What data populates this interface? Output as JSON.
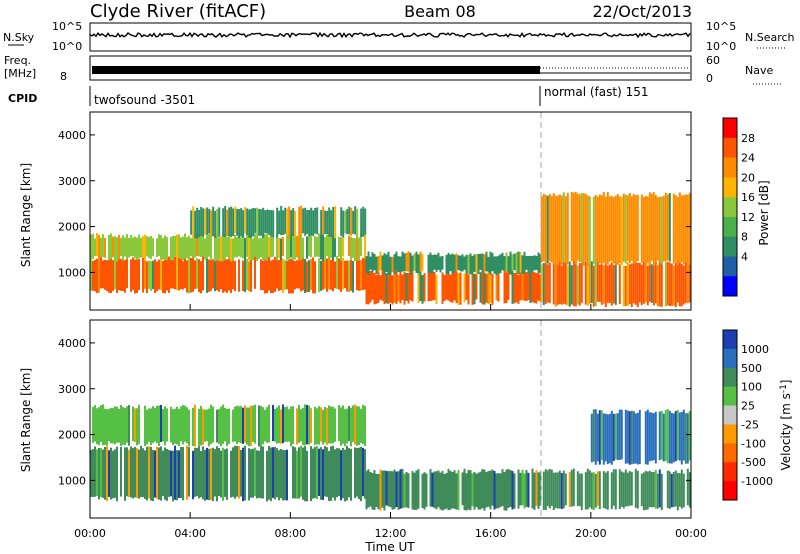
{
  "header": {
    "station": "Clyde River (fitACF)",
    "beam": "Beam 08",
    "date": "22/Oct/2013"
  },
  "noise_panel": {
    "left_label": "N.Sky",
    "right_label": "N.Search",
    "left_ticks": [
      "10^5",
      "10^0"
    ],
    "right_ticks": [
      "10^5",
      "10^0"
    ]
  },
  "freq_panel": {
    "left_label_1": "Freq.",
    "left_label_2": "[MHz]",
    "left_ticks": [
      "8"
    ],
    "right_label": "Nave",
    "right_ticks": [
      "60",
      "0"
    ]
  },
  "cpid_panel": {
    "label": "CPID",
    "segments": [
      "twofsound -3501",
      "normal (fast) 151"
    ]
  },
  "power_panel": {
    "ylabel": "Slant Range [km]",
    "yticks": [
      "4000",
      "3000",
      "2000",
      "1000"
    ],
    "colorbar_label": "Power [dB]",
    "colorbar_ticks": [
      "28",
      "24",
      "20",
      "16",
      "12",
      "8",
      "4"
    ],
    "colorbar_colors": [
      "#ff0000",
      "#ff5500",
      "#ff8c00",
      "#ffb400",
      "#8cc83c",
      "#4ab04a",
      "#2f8f63",
      "#1e5fa8",
      "#0000ff"
    ]
  },
  "velocity_panel": {
    "ylabel": "Slant Range [km]",
    "yticks": [
      "4000",
      "3000",
      "2000",
      "1000"
    ],
    "colorbar_label": "Velocity [m s^-1]",
    "colorbar_ticks": [
      "1000",
      "500",
      "100",
      "25",
      "-25",
      "-100",
      "-500",
      "-1000"
    ],
    "colorbar_colors": [
      "#1d3fb0",
      "#2a6fbf",
      "#3f8c5a",
      "#55c043",
      "#c8c8c8",
      "#ff9a00",
      "#ff6a00",
      "#ff2a00",
      "#ff0000"
    ]
  },
  "xaxis": {
    "label": "Time UT",
    "ticks": [
      "00:00",
      "04:00",
      "08:00",
      "12:00",
      "16:00",
      "20:00",
      "00:00"
    ]
  },
  "chart_data": [
    {
      "type": "heatmap",
      "title": "Power",
      "xlabel": "Time UT",
      "ylabel": "Slant Range [km]",
      "x_range_hours": [
        0,
        24
      ],
      "ylim": [
        180,
        4500
      ],
      "colorbar": "Power [dB]",
      "color_range": [
        0,
        32
      ],
      "bands": [
        {
          "start_h": 0.0,
          "end_h": 11.0,
          "range_km": [
            600,
            1300
          ],
          "level_db": 28
        },
        {
          "start_h": 0.0,
          "end_h": 11.0,
          "range_km": [
            1300,
            1800
          ],
          "level_db": 16
        },
        {
          "start_h": 4.0,
          "end_h": 11.0,
          "range_km": [
            1800,
            2400
          ],
          "level_db": 8
        },
        {
          "start_h": 11.0,
          "end_h": 18.0,
          "range_km": [
            350,
            1000
          ],
          "level_db": 28
        },
        {
          "start_h": 11.0,
          "end_h": 18.0,
          "range_km": [
            1000,
            1400
          ],
          "level_db": 10
        },
        {
          "start_h": 18.0,
          "end_h": 24.0,
          "range_km": [
            300,
            1200
          ],
          "level_db": 28
        },
        {
          "start_h": 18.0,
          "end_h": 24.0,
          "range_km": [
            1200,
            2700
          ],
          "level_db": 26
        }
      ],
      "mode_change_h": 18.0
    },
    {
      "type": "heatmap",
      "title": "Velocity",
      "xlabel": "Time UT",
      "ylabel": "Slant Range [km]",
      "x_range_hours": [
        0,
        24
      ],
      "ylim": [
        180,
        4500
      ],
      "colorbar": "Velocity [m s^-1]",
      "color_range": [
        -1000,
        1000
      ],
      "bands": [
        {
          "start_h": 0.0,
          "end_h": 11.0,
          "range_km": [
            600,
            1700
          ],
          "level_ms": 100
        },
        {
          "start_h": 0.0,
          "end_h": 11.0,
          "range_km": [
            1800,
            2600
          ],
          "level_ms": 25
        },
        {
          "start_h": 11.0,
          "end_h": 18.0,
          "range_km": [
            400,
            1200
          ],
          "level_ms": 100
        },
        {
          "start_h": 18.0,
          "end_h": 24.0,
          "range_km": [
            400,
            1200
          ],
          "level_ms": 100
        },
        {
          "start_h": 20.0,
          "end_h": 24.0,
          "range_km": [
            1400,
            2500
          ],
          "level_ms": 600
        }
      ],
      "mode_change_h": 18.0
    }
  ]
}
